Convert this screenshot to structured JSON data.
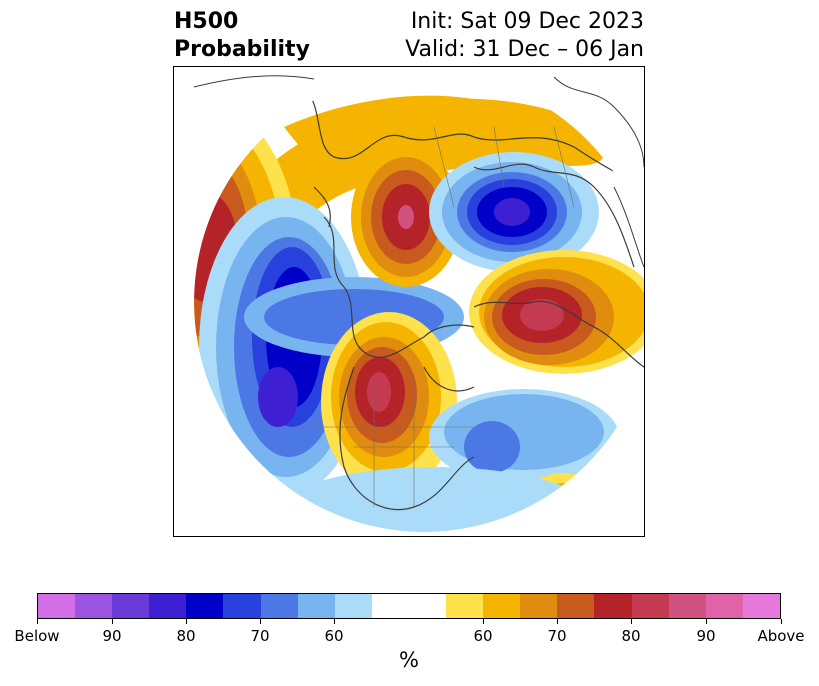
{
  "title": {
    "left_line1": "H500",
    "left_line2": "Probability",
    "right_line1": "Init: Sat 09 Dec 2023",
    "right_line2": "Valid: 31 Dec – 06 Jan"
  },
  "colorbar": {
    "unit": "%",
    "segments": [
      {
        "color": "#d26ee6"
      },
      {
        "color": "#9b55e1"
      },
      {
        "color": "#6a3ad8"
      },
      {
        "color": "#3e1fd2"
      },
      {
        "color": "#0000c8"
      },
      {
        "color": "#2840dc"
      },
      {
        "color": "#4c78e6"
      },
      {
        "color": "#78b4f0"
      },
      {
        "color": "#aadcfa"
      },
      {
        "color": "#ffffff",
        "wide": true
      },
      {
        "color": "#ffe14b"
      },
      {
        "color": "#f5b400"
      },
      {
        "color": "#e08c0f"
      },
      {
        "color": "#c85a1e"
      },
      {
        "color": "#b42328"
      },
      {
        "color": "#c43a50"
      },
      {
        "color": "#d15280"
      },
      {
        "color": "#e063aa"
      },
      {
        "color": "#e678dc"
      }
    ],
    "ticks": [
      "Below",
      "90",
      "80",
      "70",
      "60",
      "60",
      "70",
      "80",
      "90",
      "Above"
    ]
  }
}
